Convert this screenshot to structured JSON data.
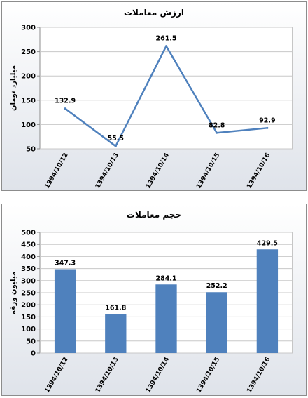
{
  "charts": [
    {
      "title": "ارزش معاملات",
      "ylabel": "میلیارد تومان"
    },
    {
      "title": "حجم معاملات",
      "ylabel": "میلیون ورقه"
    }
  ],
  "chart_data": [
    {
      "type": "line",
      "title": "ارزش معاملات",
      "xlabel": "",
      "ylabel": "میلیارد تومان",
      "categories": [
        "1394/10/12",
        "1394/10/13",
        "1394/10/14",
        "1394/10/15",
        "1394/10/16"
      ],
      "values": [
        132.9,
        55.5,
        261.5,
        82.8,
        92.9
      ],
      "data_labels": [
        "132.9",
        "55.5",
        "261.5",
        "82.8",
        "92.9"
      ],
      "ylim": [
        50,
        300
      ],
      "yticks": [
        "50",
        "100",
        "150",
        "200",
        "250",
        "300"
      ],
      "grid": true,
      "color": "#4f81bd"
    },
    {
      "type": "bar",
      "title": "حجم معاملات",
      "xlabel": "",
      "ylabel": "میلیون ورقه",
      "categories": [
        "1394/10/12",
        "1394/10/13",
        "1394/10/14",
        "1394/10/15",
        "1394/10/16"
      ],
      "values": [
        347.3,
        161.8,
        284.1,
        252.2,
        429.5
      ],
      "data_labels": [
        "347.3",
        "161.8",
        "284.1",
        "252.2",
        "429.5"
      ],
      "ylim": [
        0,
        500
      ],
      "yticks": [
        "0",
        "50",
        "100",
        "150",
        "200",
        "250",
        "300",
        "350",
        "400",
        "450",
        "500"
      ],
      "grid": true,
      "color": "#4f81bd"
    }
  ]
}
